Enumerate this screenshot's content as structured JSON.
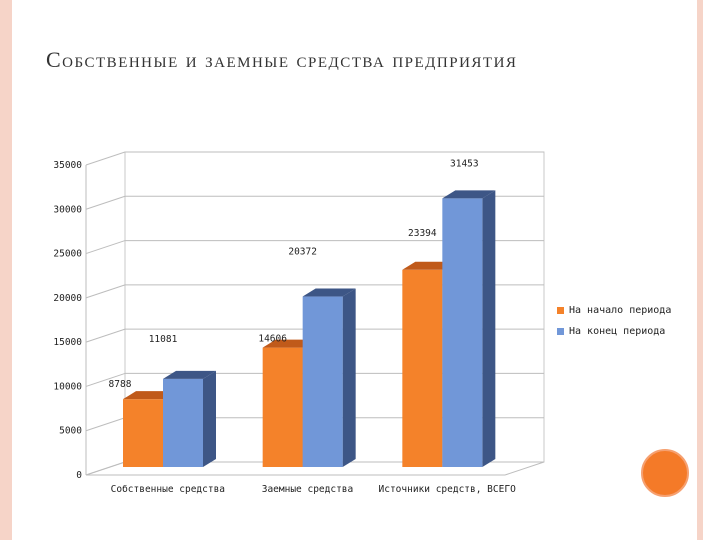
{
  "slide": {
    "title": "Собственные и заемные средства предприятия"
  },
  "colors": {
    "start": "#f4822a",
    "start_top": "#c05a1a",
    "end": "#7197d8",
    "end_side": "#3d5686",
    "end_top": "#3d5686",
    "frame": "#f6d4c8",
    "accent_circle": "#f47a28"
  },
  "chart_data": {
    "type": "bar",
    "categories": [
      "Собственные средства",
      "Заемные средства",
      "Источники средств, ВСЕГО"
    ],
    "series": [
      {
        "name": "На начало периода",
        "values": [
          8788,
          14606,
          23394
        ]
      },
      {
        "name": "На конец периода",
        "values": [
          11081,
          20372,
          31453
        ]
      }
    ],
    "ylim": [
      0,
      35000
    ],
    "yticks": [
      "0",
      "5000",
      "10000",
      "15000",
      "20000",
      "25000",
      "30000",
      "35000"
    ],
    "data_labels": [
      "8788",
      "11081",
      "14606",
      "20372",
      "23394",
      "31453"
    ],
    "grid": true,
    "legend_position": "right",
    "style": "3d-column"
  }
}
